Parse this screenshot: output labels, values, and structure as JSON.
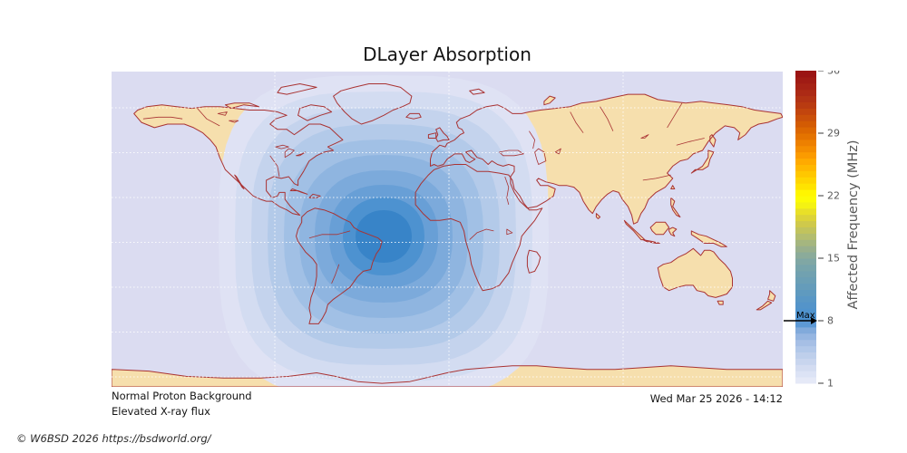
{
  "title": "DLayer Absorption",
  "footer": {
    "condition_line1": "Normal Proton Background",
    "condition_line2": "Elevated X-ray flux",
    "timestamp": "Wed Mar 25 2026 - 14:12",
    "copyright": "© W6BSD 2026 https://bsdworld.org/"
  },
  "colorbar": {
    "label": "Affected Frequency (MHz)",
    "unit": "MHz",
    "min": 1,
    "max": 36,
    "ticks": [
      1,
      8,
      15,
      22,
      29,
      36
    ],
    "max_marker": {
      "label": "Max",
      "value": 8
    },
    "tick_color": "#595959",
    "stops": [
      [
        1,
        "#e9ecf8"
      ],
      [
        2,
        "#dde3f5"
      ],
      [
        3,
        "#cfd9f0"
      ],
      [
        4,
        "#c0d0ec"
      ],
      [
        5,
        "#b0c6e8"
      ],
      [
        6,
        "#9dbae3"
      ],
      [
        7,
        "#7fa9db"
      ],
      [
        8,
        "#4a90d2"
      ],
      [
        10,
        "#5595c8"
      ],
      [
        12,
        "#669db9"
      ],
      [
        14,
        "#77a4ab"
      ],
      [
        15,
        "#85a9a0"
      ],
      [
        16,
        "#97af8e"
      ],
      [
        17,
        "#aab87a"
      ],
      [
        18,
        "#bec261"
      ],
      [
        19,
        "#d2ca47"
      ],
      [
        20,
        "#e5da2e"
      ],
      [
        21,
        "#f5f312"
      ],
      [
        22,
        "#ffff00"
      ],
      [
        23,
        "#ffe400"
      ],
      [
        24,
        "#ffd000"
      ],
      [
        25,
        "#ffbb00"
      ],
      [
        26,
        "#ffa700"
      ],
      [
        27,
        "#f79200"
      ],
      [
        28,
        "#ec7f00"
      ],
      [
        29,
        "#e06d00"
      ],
      [
        30,
        "#d45c03"
      ],
      [
        31,
        "#c74c0c"
      ],
      [
        32,
        "#bb3d11"
      ],
      [
        33,
        "#b03114"
      ],
      [
        34,
        "#a82515"
      ],
      [
        35,
        "#a01a14"
      ],
      [
        36,
        "#991013"
      ]
    ]
  },
  "map": {
    "sea_color": "#dbdcf1",
    "land_color": "#f6dfad",
    "coast_color": "#a93333",
    "grid_color": "rgba(255,255,255,0.85)",
    "bands": [
      {
        "value_mhz": 1.0,
        "color": "#dfe2f4"
      },
      {
        "value_mhz": 1.8,
        "color": "#d3dcf1"
      },
      {
        "value_mhz": 2.6,
        "color": "#c4d3ed"
      },
      {
        "value_mhz": 3.3,
        "color": "#b3cae9"
      },
      {
        "value_mhz": 4.1,
        "color": "#a1c0e5"
      },
      {
        "value_mhz": 4.9,
        "color": "#8fb5e0"
      },
      {
        "value_mhz": 5.7,
        "color": "#7caadb"
      },
      {
        "value_mhz": 6.4,
        "color": "#689fd6"
      },
      {
        "value_mhz": 7.2,
        "color": "#4d92d0"
      },
      {
        "value_mhz": 8.0,
        "color": "#3884c8"
      }
    ]
  },
  "chart_data": {
    "type": "heatmap",
    "subtype": "filled-contour world map (equirectangular)",
    "title": "DLayer Absorption",
    "colorbar_label": "Affected Frequency (MHz)",
    "colorbar_range_mhz": [
      1,
      36
    ],
    "colorbar_ticks": [
      1,
      8,
      15,
      22,
      29,
      36
    ],
    "max_affected_frequency_mhz": 8,
    "contour_levels_mhz": [
      1,
      1.8,
      2.6,
      3.3,
      4.1,
      4.9,
      5.7,
      6.4,
      7.2,
      8
    ],
    "absorption_center_estimate": {
      "lon": -35,
      "lat": -1
    },
    "dayside_extent_lon": [
      -125,
      55
    ],
    "gridlines": {
      "style": "dashed white",
      "lon_lines": [
        -90,
        0,
        90
      ]
    },
    "conditions": [
      "Normal Proton Background",
      "Elevated X-ray flux"
    ],
    "timestamp": "Wed Mar 25 2026 - 14:12",
    "legend_position": "right colorbar"
  }
}
